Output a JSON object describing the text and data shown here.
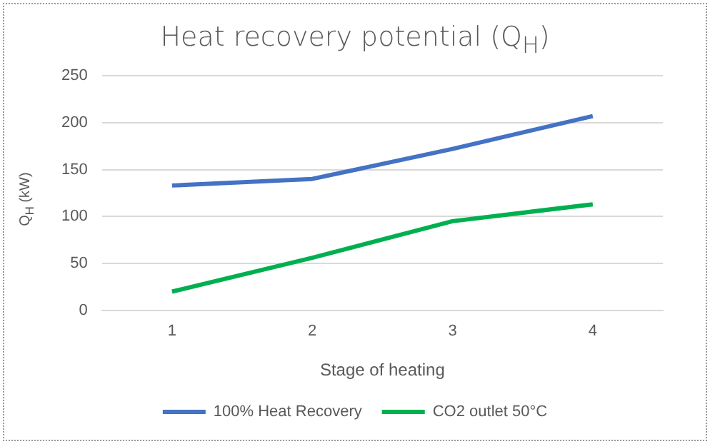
{
  "chart_data": {
    "type": "line",
    "title": "Heat recovery potential (Q$_{H}$)",
    "xlabel": "Stage of heating",
    "ylabel": "Q$_{H}$ (kW)",
    "categories": [
      "1",
      "2",
      "3",
      "4"
    ],
    "series": [
      {
        "name": "100% Heat Recovery",
        "color": "#4472c4",
        "values": [
          133,
          140,
          172,
          207
        ]
      },
      {
        "name": "CO2 outlet 50°C",
        "color": "#00b050",
        "values": [
          20,
          56,
          95,
          113
        ]
      }
    ],
    "ylim": [
      0,
      250
    ],
    "yticks": [
      0,
      50,
      100,
      150,
      200,
      250
    ],
    "grid": "y",
    "legend": "bottom",
    "marker": "none",
    "line_style": "solid"
  }
}
